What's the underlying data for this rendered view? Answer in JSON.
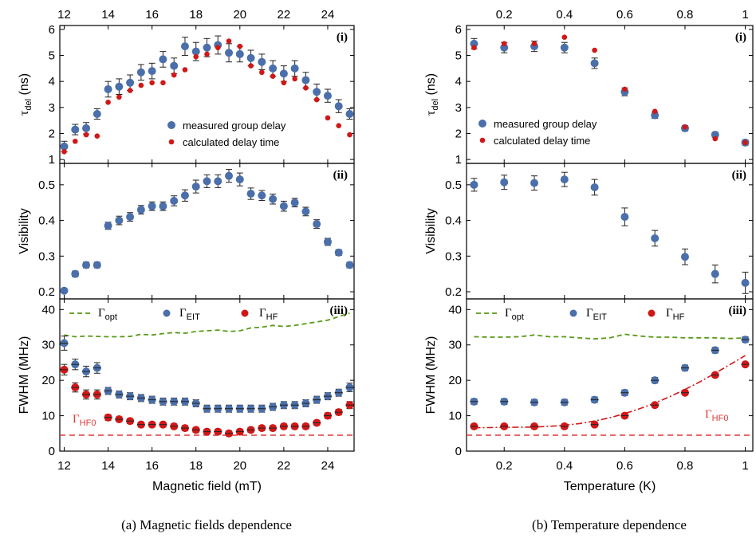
{
  "colors": {
    "measured": "#4a6faa",
    "calculated": "#d01818",
    "opt": "#5a9a18",
    "hf0": "#e03a3a",
    "fit": "#d01818"
  },
  "labels": {
    "tau_sym": "τ",
    "tau_sub": "del",
    "tau_unit": "(ns)",
    "visibility": "Visibility",
    "fwhm": "FWHM (MHz)",
    "xlabel_a": "Magnetic field (mT)",
    "xlabel_b": "Temperature (K)",
    "caption_a": "(a) Magnetic fields dependence",
    "caption_b": "(b) Temperature dependence",
    "tag_i": "(i)",
    "tag_ii": "(ii)",
    "tag_iii": "(iii)",
    "legend_measured": "measured group delay",
    "legend_calculated": "calculated delay time",
    "gamma": "Γ",
    "sub_opt": "opt",
    "sub_eit": "EIT",
    "sub_hf": "HF",
    "sub_hf0": "HF0"
  },
  "chart_data": [
    {
      "id": "a",
      "type": "scatter",
      "xlim": [
        11.8,
        25.2
      ],
      "xticks": [
        12,
        14,
        16,
        18,
        20,
        22,
        24
      ],
      "panels": {
        "delay": {
          "ylim": [
            0.85,
            6.15
          ],
          "yticks": [
            1,
            2,
            3,
            4,
            5,
            6
          ],
          "measured": {
            "x": [
              12,
              12.5,
              13,
              13.5,
              14,
              14.5,
              15,
              15.5,
              16,
              16.5,
              17,
              17.5,
              18,
              18.5,
              19,
              19.5,
              20,
              20.5,
              21,
              21.5,
              22,
              22.5,
              23,
              23.5,
              24,
              24.5,
              25
            ],
            "y": [
              1.5,
              2.15,
              2.2,
              2.75,
              3.7,
              3.8,
              3.95,
              4.35,
              4.4,
              4.85,
              4.6,
              5.35,
              5.15,
              5.3,
              5.4,
              5.1,
              5.05,
              4.9,
              4.75,
              4.5,
              4.3,
              4.5,
              4.05,
              3.6,
              3.45,
              3.05,
              2.75
            ],
            "err": [
              0.2,
              0.2,
              0.22,
              0.2,
              0.3,
              0.3,
              0.3,
              0.3,
              0.3,
              0.3,
              0.3,
              0.35,
              0.35,
              0.35,
              0.35,
              0.35,
              0.3,
              0.3,
              0.3,
              0.3,
              0.3,
              0.3,
              0.3,
              0.3,
              0.25,
              0.25,
              0.2
            ]
          },
          "calculated": {
            "x": [
              12,
              12.5,
              13,
              13.5,
              14,
              14.5,
              15,
              15.5,
              16,
              16.5,
              17,
              17.5,
              18,
              18.5,
              19,
              19.5,
              20,
              20.5,
              21,
              21.5,
              22,
              22.5,
              23,
              23.5,
              24,
              24.5,
              25
            ],
            "y": [
              1.3,
              1.7,
              1.95,
              1.9,
              3.2,
              3.4,
              3.65,
              3.85,
              3.95,
              3.95,
              4.25,
              4.45,
              4.95,
              5.05,
              5.3,
              5.55,
              5.35,
              4.6,
              4.35,
              4.2,
              3.95,
              4.1,
              3.75,
              3.3,
              2.6,
              2.3,
              1.95
            ]
          }
        },
        "visibility": {
          "ylim": [
            0.18,
            0.56
          ],
          "yticks": [
            0.2,
            0.3,
            0.4,
            0.5
          ],
          "measured": {
            "x": [
              12,
              12.5,
              13,
              13.5,
              14,
              14.5,
              15,
              15.5,
              16,
              16.5,
              17,
              17.5,
              18,
              18.5,
              19,
              19.5,
              20,
              20.5,
              21,
              21.5,
              22,
              22.5,
              23,
              23.5,
              24,
              24.5,
              25
            ],
            "y": [
              0.203,
              0.25,
              0.275,
              0.275,
              0.385,
              0.4,
              0.41,
              0.43,
              0.44,
              0.44,
              0.455,
              0.47,
              0.495,
              0.51,
              0.51,
              0.525,
              0.515,
              0.475,
              0.47,
              0.46,
              0.44,
              0.45,
              0.425,
              0.39,
              0.34,
              0.31,
              0.275
            ],
            "err": [
              0.005,
              0.008,
              0.008,
              0.008,
              0.01,
              0.012,
              0.012,
              0.012,
              0.012,
              0.012,
              0.014,
              0.016,
              0.018,
              0.018,
              0.018,
              0.018,
              0.018,
              0.016,
              0.014,
              0.014,
              0.014,
              0.012,
              0.012,
              0.012,
              0.01,
              0.008,
              0.008
            ]
          }
        },
        "fwhm": {
          "ylim": [
            0,
            43
          ],
          "yticks": [
            0,
            10,
            20,
            30,
            40
          ],
          "eit": {
            "x": [
              12,
              12.5,
              13,
              13.5,
              14,
              14.5,
              15,
              15.5,
              16,
              16.5,
              17,
              17.5,
              18,
              18.5,
              19,
              19.5,
              20,
              20.5,
              21,
              21.5,
              22,
              22.5,
              23,
              23.5,
              24,
              24.5,
              25
            ],
            "y": [
              30.5,
              24.5,
              22.5,
              23.5,
              17,
              16,
              15.5,
              15,
              14.5,
              14,
              14,
              14,
              13.5,
              12,
              12,
              12,
              12,
              12,
              12,
              12.5,
              13,
              13,
              13.5,
              14.5,
              15.5,
              16.5,
              18
            ],
            "err": [
              2,
              1.5,
              1.5,
              1.5,
              1,
              1,
              1,
              1,
              1,
              1,
              1,
              1,
              1,
              1,
              1,
              1,
              1,
              1,
              1,
              1,
              1,
              1,
              1,
              1,
              1,
              1,
              1.2
            ]
          },
          "hf": {
            "x": [
              12,
              12.5,
              13,
              13.5,
              14,
              14.5,
              15,
              15.5,
              16,
              16.5,
              17,
              17.5,
              18,
              18.5,
              19,
              19.5,
              20,
              20.5,
              21,
              21.5,
              22,
              22.5,
              23,
              23.5,
              24,
              24.5,
              25
            ],
            "y": [
              23,
              18,
              16,
              16,
              9.5,
              9,
              8.5,
              7.5,
              7.5,
              7.5,
              7,
              6.5,
              6,
              5.5,
              5.5,
              5,
              5.5,
              6,
              6.5,
              6.5,
              7,
              7,
              7,
              8,
              10,
              11,
              13
            ],
            "err": [
              1.5,
              1.3,
              1.3,
              1.3,
              0.8,
              0.7,
              0.7,
              0.7,
              0.7,
              0.7,
              0.7,
              0.7,
              0.7,
              0.7,
              0.7,
              0.7,
              0.7,
              0.7,
              0.7,
              0.7,
              0.7,
              0.7,
              0.7,
              0.7,
              0.8,
              0.8,
              1
            ]
          },
          "opt": {
            "x": [
              12,
              12.5,
              13,
              13.5,
              14,
              14.5,
              15,
              15.5,
              16,
              16.5,
              17,
              17.5,
              18,
              18.5,
              19,
              19.5,
              20,
              20.5,
              21,
              21.5,
              22,
              22.5,
              23,
              23.5,
              24,
              24.5,
              25
            ],
            "y": [
              32.8,
              32.3,
              32.5,
              32.4,
              32.3,
              32.3,
              32.4,
              33,
              32.8,
              33.2,
              33.5,
              33.3,
              33.8,
              34,
              34.2,
              33.8,
              34,
              34.8,
              35,
              35.5,
              35.2,
              35.5,
              36,
              36.5,
              37,
              38,
              39
            ]
          },
          "hf0": 4.5
        }
      }
    },
    {
      "id": "b",
      "type": "scatter",
      "xlim": [
        0.075,
        1.025
      ],
      "xticks": [
        0.2,
        0.4,
        0.6,
        0.8,
        1.0
      ],
      "panels": {
        "delay": {
          "ylim": [
            0.85,
            6.15
          ],
          "yticks": [
            1,
            2,
            3,
            4,
            5,
            6
          ],
          "measured": {
            "x": [
              0.1,
              0.2,
              0.3,
              0.4,
              0.5,
              0.6,
              0.7,
              0.8,
              0.9,
              1.0
            ],
            "y": [
              5.45,
              5.3,
              5.35,
              5.3,
              4.7,
              3.6,
              2.7,
              2.2,
              1.95,
              1.65
            ],
            "err": [
              0.2,
              0.2,
              0.2,
              0.2,
              0.2,
              0.15,
              0.12,
              0.1,
              0.1,
              0.1
            ]
          },
          "calculated": {
            "x": [
              0.1,
              0.2,
              0.3,
              0.4,
              0.5,
              0.6,
              0.7,
              0.8,
              0.9,
              1.0
            ],
            "y": [
              5.3,
              5.45,
              5.45,
              5.7,
              5.2,
              3.7,
              2.85,
              2.25,
              1.8,
              1.65
            ]
          }
        },
        "visibility": {
          "ylim": [
            0.18,
            0.56
          ],
          "yticks": [
            0.2,
            0.3,
            0.4,
            0.5
          ],
          "measured": {
            "x": [
              0.1,
              0.2,
              0.3,
              0.4,
              0.5,
              0.6,
              0.7,
              0.8,
              0.9,
              1.0
            ],
            "y": [
              0.5,
              0.507,
              0.505,
              0.515,
              0.493,
              0.41,
              0.35,
              0.298,
              0.25,
              0.225
            ],
            "err": [
              0.018,
              0.02,
              0.02,
              0.02,
              0.022,
              0.025,
              0.022,
              0.022,
              0.025,
              0.03
            ]
          }
        },
        "fwhm": {
          "ylim": [
            0,
            43
          ],
          "yticks": [
            0,
            10,
            20,
            30,
            40
          ],
          "eit": {
            "x": [
              0.1,
              0.2,
              0.3,
              0.4,
              0.5,
              0.6,
              0.7,
              0.8,
              0.9,
              1.0
            ],
            "y": [
              14,
              14,
              13.8,
              13.8,
              14.5,
              16.5,
              20,
              23.5,
              28.5,
              31.5
            ],
            "err": [
              0.8,
              0.8,
              0.8,
              0.8,
              0.8,
              0.8,
              0.8,
              0.8,
              0.8,
              0.8
            ]
          },
          "hf": {
            "x": [
              0.1,
              0.2,
              0.3,
              0.4,
              0.5,
              0.6,
              0.7,
              0.8,
              0.9,
              1.0
            ],
            "y": [
              7,
              7,
              7,
              7,
              7.5,
              10,
              13,
              16.5,
              21.5,
              24.5
            ],
            "err": [
              0.6,
              0.6,
              0.6,
              0.6,
              0.6,
              0.6,
              0.6,
              0.6,
              0.6,
              0.6
            ]
          },
          "opt": {
            "x": [
              0.1,
              0.15,
              0.2,
              0.25,
              0.3,
              0.35,
              0.4,
              0.45,
              0.5,
              0.55,
              0.6,
              0.65,
              0.7,
              0.75,
              0.8,
              0.85,
              0.9,
              0.95,
              1.0
            ],
            "y": [
              32.3,
              32.2,
              32.2,
              32.3,
              32.8,
              32.3,
              32.3,
              32,
              31.7,
              32,
              33,
              32.5,
              32.2,
              32.2,
              32,
              32,
              32,
              31.8,
              32
            ]
          },
          "fit": {
            "x": [
              0.1,
              0.2,
              0.3,
              0.35,
              0.4,
              0.45,
              0.5,
              0.55,
              0.6,
              0.65,
              0.7,
              0.75,
              0.8,
              0.85,
              0.9,
              0.95,
              1.0
            ],
            "y": [
              6.6,
              6.7,
              6.8,
              7,
              7.3,
              7.8,
              8.5,
              9.4,
              10.6,
              12,
              13.6,
              15.4,
              17.4,
              19.6,
              22,
              24.5,
              27
            ]
          },
          "hf0": 4.5
        }
      }
    }
  ]
}
